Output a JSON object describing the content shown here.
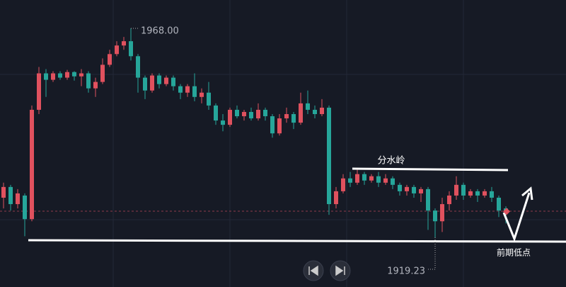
{
  "chart_data": {
    "type": "candlestick",
    "up_color": "#e0515e",
    "down_color": "#26a69a",
    "ylim": [
      1907.67,
      1974.61
    ],
    "open": [
      1928.5,
      1931.0,
      1927.0,
      1929.0,
      1923.5,
      1949.0,
      1957.5,
      1956.0,
      1957.5,
      1956.5,
      1957.8,
      1956.8,
      1957.5,
      1954.0,
      1955.5,
      1959.5,
      1962.0,
      1964.0,
      1965.0,
      1961.5,
      1956.5,
      1953.5,
      1957.0,
      1955.0,
      1956.5,
      1954.5,
      1953.0,
      1954.5,
      1952.0,
      1953.0,
      1950.0,
      1946.5,
      1945.5,
      1949.0,
      1947.5,
      1948.5,
      1947.0,
      1949.0,
      1947.5,
      1943.5,
      1947.0,
      1948.0,
      1946.0,
      1950.5,
      1949.0,
      1948.0,
      1949.5,
      1927.0,
      1930.0,
      1933.0,
      1932.0,
      1934.0,
      1932.5,
      1933.5,
      1932.0,
      1933.0,
      1931.5,
      1930.0,
      1931.0,
      1929.5,
      1930.5,
      1925.5,
      1923.0,
      1927.0,
      1929.0,
      1931.5,
      1929.0,
      1930.0,
      1929.0,
      1930.0,
      1928.5,
      1926.0
    ],
    "high": [
      1932.0,
      1931.5,
      1930.5,
      1929.5,
      1950.0,
      1959.0,
      1958.5,
      1958.0,
      1958.0,
      1958.3,
      1958.0,
      1958.5,
      1958.0,
      1956.5,
      1961.0,
      1963.0,
      1965.0,
      1966.0,
      1968.0,
      1962.0,
      1957.0,
      1957.5,
      1957.5,
      1957.0,
      1957.0,
      1955.0,
      1955.0,
      1957.5,
      1954.0,
      1955.5,
      1950.5,
      1948.0,
      1949.5,
      1950.0,
      1949.0,
      1949.5,
      1950.5,
      1949.5,
      1948.0,
      1948.0,
      1949.5,
      1948.5,
      1953.0,
      1953.5,
      1950.0,
      1951.5,
      1950.0,
      1931.0,
      1934.0,
      1934.5,
      1935.0,
      1934.5,
      1934.0,
      1934.5,
      1934.0,
      1933.5,
      1932.0,
      1931.5,
      1931.5,
      1931.0,
      1931.0,
      1926.0,
      1928.5,
      1930.0,
      1933.5,
      1932.0,
      1930.5,
      1930.5,
      1930.5,
      1931.0,
      1929.0,
      1926.5
    ],
    "low": [
      1926.0,
      1925.5,
      1926.0,
      1919.5,
      1923.0,
      1948.0,
      1952.0,
      1955.5,
      1956.0,
      1956.0,
      1955.8,
      1954.5,
      1953.0,
      1952.0,
      1955.0,
      1959.0,
      1961.5,
      1963.0,
      1960.5,
      1953.0,
      1951.5,
      1953.0,
      1954.0,
      1954.5,
      1953.5,
      1951.5,
      1952.0,
      1951.0,
      1950.5,
      1949.0,
      1945.5,
      1944.0,
      1945.0,
      1947.0,
      1946.5,
      1946.5,
      1946.5,
      1946.5,
      1942.5,
      1943.0,
      1946.0,
      1944.5,
      1945.5,
      1948.0,
      1947.0,
      1947.5,
      1924.5,
      1926.0,
      1929.5,
      1931.0,
      1931.5,
      1931.5,
      1932.0,
      1931.0,
      1931.5,
      1930.5,
      1929.0,
      1929.0,
      1928.5,
      1927.5,
      1921.0,
      1919.23,
      1920.5,
      1925.5,
      1928.0,
      1928.0,
      1928.5,
      1927.5,
      1928.5,
      1927.5,
      1924.0,
      1922.5
    ],
    "close": [
      1931.0,
      1927.0,
      1929.5,
      1923.5,
      1949.0,
      1957.5,
      1956.0,
      1957.5,
      1956.5,
      1957.8,
      1956.8,
      1957.5,
      1954.0,
      1955.5,
      1959.5,
      1962.0,
      1964.0,
      1965.0,
      1961.5,
      1956.5,
      1953.5,
      1957.0,
      1955.0,
      1956.5,
      1954.5,
      1953.0,
      1954.5,
      1952.0,
      1953.0,
      1950.0,
      1946.5,
      1945.5,
      1949.0,
      1947.5,
      1948.5,
      1947.0,
      1949.0,
      1947.5,
      1943.5,
      1947.0,
      1948.0,
      1946.0,
      1950.5,
      1949.0,
      1948.0,
      1949.5,
      1927.0,
      1930.0,
      1933.0,
      1932.0,
      1934.0,
      1932.5,
      1933.5,
      1932.0,
      1933.0,
      1931.5,
      1930.0,
      1931.0,
      1929.5,
      1930.5,
      1925.5,
      1923.0,
      1927.0,
      1929.0,
      1931.5,
      1929.0,
      1930.0,
      1929.0,
      1930.0,
      1928.5,
      1925.5,
      1925.3
    ],
    "annotations": [
      {
        "value": 1968.0,
        "label": "1968.00"
      },
      {
        "value": 1919.23,
        "label": "1919.23"
      }
    ],
    "notes": {
      "watershed": "分水岭",
      "prior_low": "前期低点"
    }
  }
}
